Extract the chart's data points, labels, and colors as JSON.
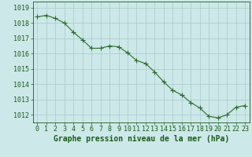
{
  "x": [
    0,
    1,
    2,
    3,
    4,
    5,
    6,
    7,
    8,
    9,
    10,
    11,
    12,
    13,
    14,
    15,
    16,
    17,
    18,
    19,
    20,
    21,
    22,
    23
  ],
  "y": [
    1018.4,
    1018.5,
    1018.3,
    1018.0,
    1017.4,
    1016.9,
    1016.35,
    1016.35,
    1016.5,
    1016.45,
    1016.05,
    1015.55,
    1015.35,
    1014.8,
    1014.15,
    1013.6,
    1013.3,
    1012.8,
    1012.45,
    1011.9,
    1011.8,
    1012.0,
    1012.5,
    1012.6
  ],
  "line_color": "#2d6b2d",
  "marker": "+",
  "marker_size": 4,
  "bg_color": "#cce8e8",
  "grid_color": "#aacaca",
  "title": "Graphe pression niveau de la mer (hPa)",
  "xlabel_ticks": [
    "0",
    "1",
    "2",
    "3",
    "4",
    "5",
    "6",
    "7",
    "8",
    "9",
    "10",
    "11",
    "12",
    "13",
    "14",
    "15",
    "16",
    "17",
    "18",
    "19",
    "20",
    "21",
    "22",
    "23"
  ],
  "yticks": [
    1012,
    1013,
    1014,
    1015,
    1016,
    1017,
    1018,
    1019
  ],
  "ylim": [
    1011.5,
    1019.4
  ],
  "xlim": [
    -0.5,
    23.5
  ],
  "tick_color": "#1a5c1a",
  "label_fontsize": 6,
  "title_fontsize": 7,
  "linewidth": 0.8
}
